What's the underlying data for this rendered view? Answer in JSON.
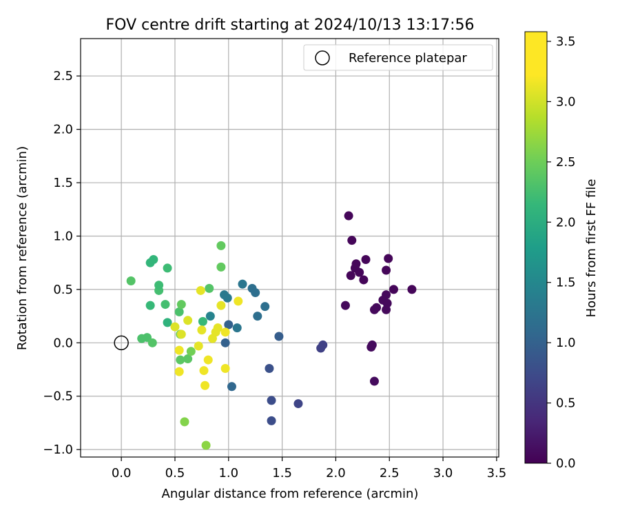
{
  "chart_data": {
    "type": "scatter",
    "title": "FOV centre drift starting at 2024/10/13 13:17:56",
    "xlabel": "Angular distance from reference (arcmin)",
    "ylabel": "Rotation from reference (arcmin)",
    "xlim": [
      -0.38,
      3.52
    ],
    "ylim": [
      -1.07,
      2.85
    ],
    "xticks": [
      0.0,
      0.5,
      1.0,
      1.5,
      2.0,
      2.5,
      3.0,
      3.5
    ],
    "xtick_labels": [
      "0.0",
      "0.5",
      "1.0",
      "1.5",
      "2.0",
      "2.5",
      "3.0",
      "3.5"
    ],
    "yticks": [
      -1.0,
      -0.5,
      0.0,
      0.5,
      1.0,
      1.5,
      2.0,
      2.5
    ],
    "ytick_labels": [
      "−1.0",
      "−0.5",
      "0.0",
      "0.5",
      "1.0",
      "1.5",
      "2.0",
      "2.5"
    ],
    "grid": true,
    "colormap": "viridis",
    "colorbar": {
      "label": "Hours from first FF file",
      "range": [
        0.0,
        3.58
      ],
      "ticks": [
        0.0,
        0.5,
        1.0,
        1.5,
        2.0,
        2.5,
        3.0,
        3.5
      ],
      "tick_labels": [
        "0.0",
        "0.5",
        "1.0",
        "1.5",
        "2.0",
        "2.5",
        "3.0",
        "3.5"
      ]
    },
    "legend": {
      "position": "top-right",
      "entries": [
        "Reference platepar"
      ]
    },
    "reference_point": {
      "x": 0.0,
      "y": 0.0
    },
    "points": [
      {
        "x": 2.12,
        "y": 1.19,
        "c": 0.05
      },
      {
        "x": 2.15,
        "y": 0.96,
        "c": 0.05
      },
      {
        "x": 2.14,
        "y": 0.63,
        "c": 0.05
      },
      {
        "x": 2.18,
        "y": 0.7,
        "c": 0.05
      },
      {
        "x": 2.19,
        "y": 0.74,
        "c": 0.05
      },
      {
        "x": 2.22,
        "y": 0.66,
        "c": 0.05
      },
      {
        "x": 2.26,
        "y": 0.59,
        "c": 0.05
      },
      {
        "x": 2.28,
        "y": 0.78,
        "c": 0.05
      },
      {
        "x": 2.49,
        "y": 0.79,
        "c": 0.05
      },
      {
        "x": 2.47,
        "y": 0.68,
        "c": 0.05
      },
      {
        "x": 2.54,
        "y": 0.5,
        "c": 0.05
      },
      {
        "x": 2.71,
        "y": 0.5,
        "c": 0.05
      },
      {
        "x": 2.47,
        "y": 0.45,
        "c": 0.08
      },
      {
        "x": 2.44,
        "y": 0.4,
        "c": 0.08
      },
      {
        "x": 2.48,
        "y": 0.37,
        "c": 0.08
      },
      {
        "x": 2.38,
        "y": 0.33,
        "c": 0.08
      },
      {
        "x": 2.36,
        "y": 0.31,
        "c": 0.08
      },
      {
        "x": 2.47,
        "y": 0.31,
        "c": 0.08
      },
      {
        "x": 2.09,
        "y": 0.35,
        "c": 0.08
      },
      {
        "x": 2.34,
        "y": -0.02,
        "c": 0.1
      },
      {
        "x": 2.33,
        "y": -0.04,
        "c": 0.1
      },
      {
        "x": 2.36,
        "y": -0.36,
        "c": 0.1
      },
      {
        "x": 1.88,
        "y": -0.02,
        "c": 0.7
      },
      {
        "x": 1.86,
        "y": -0.05,
        "c": 0.7
      },
      {
        "x": 1.65,
        "y": -0.57,
        "c": 0.75
      },
      {
        "x": 1.4,
        "y": -0.54,
        "c": 0.85
      },
      {
        "x": 1.4,
        "y": -0.73,
        "c": 0.85
      },
      {
        "x": 1.38,
        "y": -0.24,
        "c": 0.9
      },
      {
        "x": 1.47,
        "y": 0.06,
        "c": 1.05
      },
      {
        "x": 0.97,
        "y": 0.0,
        "c": 1.1
      },
      {
        "x": 1.0,
        "y": 0.17,
        "c": 1.1
      },
      {
        "x": 1.03,
        "y": -0.41,
        "c": 1.2
      },
      {
        "x": 1.27,
        "y": 0.25,
        "c": 1.3
      },
      {
        "x": 1.34,
        "y": 0.34,
        "c": 1.3
      },
      {
        "x": 1.22,
        "y": 0.51,
        "c": 1.3
      },
      {
        "x": 1.25,
        "y": 0.47,
        "c": 1.3
      },
      {
        "x": 1.13,
        "y": 0.55,
        "c": 1.4
      },
      {
        "x": 1.08,
        "y": 0.14,
        "c": 1.4
      },
      {
        "x": 0.96,
        "y": 0.45,
        "c": 1.45
      },
      {
        "x": 0.99,
        "y": 0.42,
        "c": 1.45
      },
      {
        "x": 0.83,
        "y": 0.25,
        "c": 1.6
      },
      {
        "x": 0.41,
        "y": 0.36,
        "c": 2.5
      },
      {
        "x": 0.35,
        "y": 0.49,
        "c": 2.5
      },
      {
        "x": 0.35,
        "y": 0.54,
        "c": 2.45
      },
      {
        "x": 0.43,
        "y": 0.7,
        "c": 2.45
      },
      {
        "x": 0.43,
        "y": 0.19,
        "c": 2.3
      },
      {
        "x": 0.27,
        "y": 0.75,
        "c": 2.35
      },
      {
        "x": 0.3,
        "y": 0.78,
        "c": 2.35
      },
      {
        "x": 0.27,
        "y": 0.35,
        "c": 2.4
      },
      {
        "x": 0.09,
        "y": 0.58,
        "c": 2.6
      },
      {
        "x": 0.19,
        "y": 0.04,
        "c": 2.55
      },
      {
        "x": 0.24,
        "y": 0.05,
        "c": 2.55
      },
      {
        "x": 0.29,
        "y": 0.0,
        "c": 2.6
      },
      {
        "x": 0.76,
        "y": 0.2,
        "c": 2.4
      },
      {
        "x": 0.82,
        "y": 0.51,
        "c": 2.6
      },
      {
        "x": 0.93,
        "y": 0.91,
        "c": 2.7
      },
      {
        "x": 0.93,
        "y": 0.71,
        "c": 2.7
      },
      {
        "x": 0.54,
        "y": 0.29,
        "c": 2.55
      },
      {
        "x": 0.56,
        "y": 0.36,
        "c": 2.7
      },
      {
        "x": 0.55,
        "y": 0.08,
        "c": 2.75
      },
      {
        "x": 0.55,
        "y": -0.16,
        "c": 2.65
      },
      {
        "x": 0.62,
        "y": -0.15,
        "c": 2.65
      },
      {
        "x": 0.65,
        "y": -0.08,
        "c": 2.8
      },
      {
        "x": 0.59,
        "y": -0.74,
        "c": 2.9
      },
      {
        "x": 0.79,
        "y": -0.96,
        "c": 2.95
      },
      {
        "x": 0.56,
        "y": 0.08,
        "c": 3.4
      },
      {
        "x": 0.5,
        "y": 0.15,
        "c": 3.4
      },
      {
        "x": 0.62,
        "y": 0.21,
        "c": 3.4
      },
      {
        "x": 0.54,
        "y": -0.07,
        "c": 3.5
      },
      {
        "x": 0.54,
        "y": -0.27,
        "c": 3.5
      },
      {
        "x": 0.72,
        "y": -0.03,
        "c": 3.45
      },
      {
        "x": 0.75,
        "y": 0.12,
        "c": 3.45
      },
      {
        "x": 0.74,
        "y": 0.49,
        "c": 3.45
      },
      {
        "x": 0.81,
        "y": -0.16,
        "c": 3.5
      },
      {
        "x": 0.77,
        "y": -0.26,
        "c": 3.5
      },
      {
        "x": 0.78,
        "y": -0.4,
        "c": 3.5
      },
      {
        "x": 0.85,
        "y": 0.04,
        "c": 3.45
      },
      {
        "x": 0.88,
        "y": 0.1,
        "c": 3.45
      },
      {
        "x": 0.9,
        "y": 0.14,
        "c": 3.45
      },
      {
        "x": 0.93,
        "y": 0.35,
        "c": 3.45
      },
      {
        "x": 0.97,
        "y": 0.1,
        "c": 3.5
      },
      {
        "x": 0.97,
        "y": -0.24,
        "c": 3.5
      },
      {
        "x": 1.09,
        "y": 0.39,
        "c": 3.5
      }
    ]
  }
}
